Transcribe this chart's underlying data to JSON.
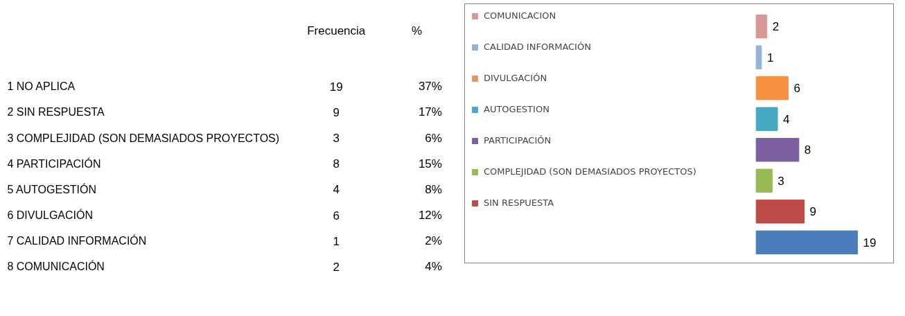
{
  "chart_data": [
    {
      "type": "other",
      "annotations": [
        "Frecuencia",
        "%",
        "1   NO APLICA",
        "19",
        "37%",
        "2   SIN RESPUESTA",
        "9",
        "17%",
        "3   COMPLEJIDAD (SON DEMASIADOS PROYECTOS)",
        "3",
        "6%",
        "4   PARTICIPACIÓN",
        "8",
        "15%",
        "5   AUTOGESTIÓN",
        "4",
        "8%",
        "6   DIVULGACIÓN",
        "6",
        "12%",
        "7   CALIDAD INFORMACIÓN",
        "1",
        "2%",
        "8   COMUNICACIÓN",
        "2",
        "4%"
      ]
    },
    {
      "type": "bar",
      "orientation": "horizontal",
      "legend": "left",
      "data_labels": true,
      "stacked": true,
      "categories": [
        null,
        null,
        null,
        null,
        null,
        null,
        null,
        null
      ],
      "series": [
        {
          "name": "COMUNICACION",
          "color": "#d99795",
          "values": [
            2,
            null,
            null,
            null,
            null,
            null,
            null,
            null
          ]
        },
        {
          "name": "CALIDAD INFORMACIÓN",
          "color": "#94b3d6",
          "values": [
            null,
            1,
            null,
            null,
            null,
            null,
            null,
            null
          ]
        },
        {
          "name": "DIVULGACIÓN",
          "color": "#f69240",
          "values": [
            null,
            null,
            6,
            null,
            null,
            null,
            null,
            null
          ]
        },
        {
          "name": "AUTOGESTION",
          "color": "#46aac5",
          "values": [
            null,
            null,
            null,
            4,
            null,
            null,
            null,
            null
          ]
        },
        {
          "name": "PARTICIPACIÓN",
          "color": "#7d60a0",
          "values": [
            null,
            null,
            null,
            null,
            8,
            null,
            null,
            null
          ]
        },
        {
          "name": "COMPLEJIDAD (SON DEMASIADOS PROYECTOS)",
          "color": "#98b954",
          "values": [
            null,
            null,
            null,
            null,
            null,
            3,
            null,
            null
          ]
        },
        {
          "name": "SIN RESPUESTA",
          "color": "#be4b48",
          "values": [
            null,
            null,
            null,
            null,
            null,
            null,
            9,
            null
          ]
        },
        {
          "color": "#4a7ebb",
          "values": [
            null,
            null,
            null,
            null,
            null,
            null,
            null,
            19
          ]
        }
      ]
    }
  ]
}
